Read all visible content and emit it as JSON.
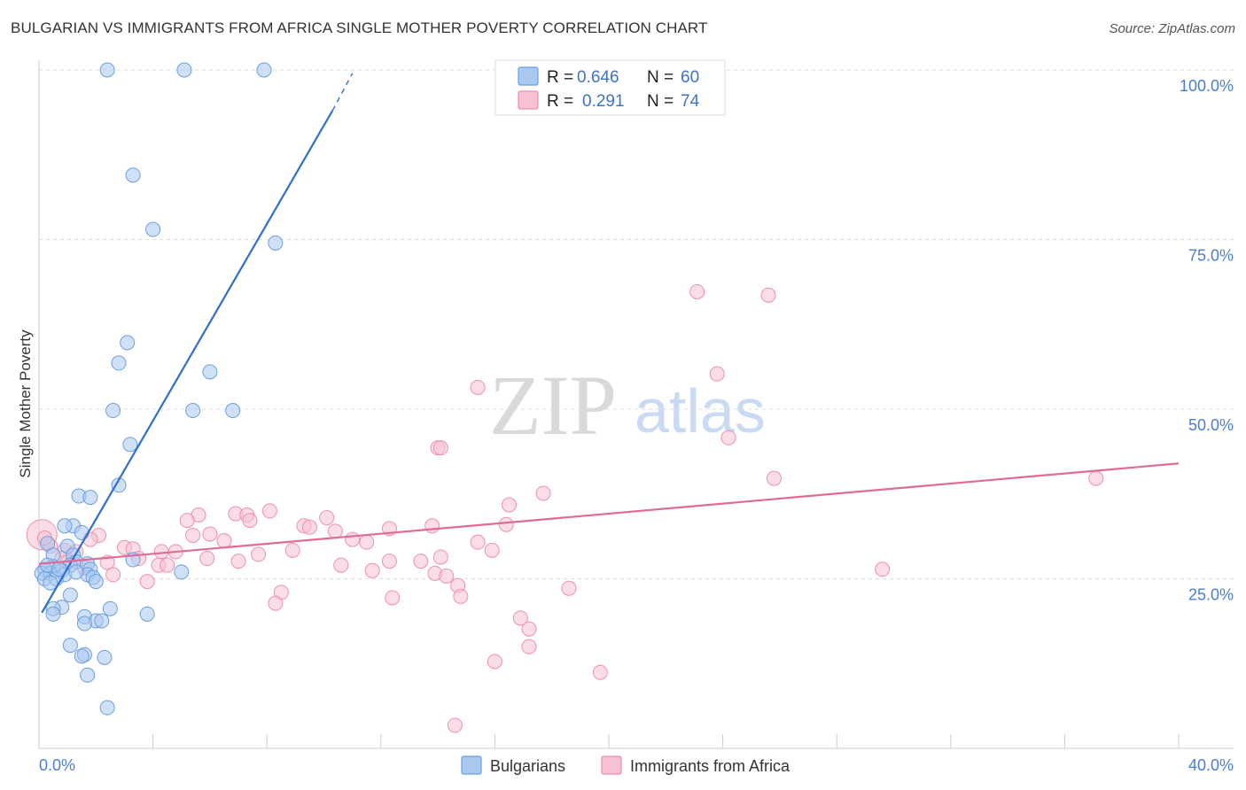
{
  "title": "BULGARIAN VS IMMIGRANTS FROM AFRICA SINGLE MOTHER POVERTY CORRELATION CHART",
  "source": "Source: ZipAtlas.com",
  "colors": {
    "blue_fill": "#a9c8f0",
    "blue_stroke": "#6a9fe0",
    "blue_line": "#2f6fd0",
    "pink_fill": "#f7c1d2",
    "pink_stroke": "#ee8fb0",
    "pink_line": "#e06a98",
    "tick_text": "#4a7fd0",
    "grid": "#dddddd"
  },
  "watermark": {
    "zip": "ZIP",
    "atlas": "atlas"
  },
  "legend": {
    "row1": {
      "r_label": "R =",
      "r_value": "0.646",
      "n_label": "N =",
      "n_value": "60"
    },
    "row2": {
      "r_label": "R =",
      "r_value": "0.291",
      "n_label": "N =",
      "n_value": "74"
    }
  },
  "bottom_legend": {
    "item1": "Bulgarians",
    "item2": "Immigrants from Africa"
  },
  "chart_data": {
    "type": "scatter",
    "title": "BULGARIAN VS IMMIGRANTS FROM AFRICA SINGLE MOTHER POVERTY CORRELATION CHART",
    "xlabel": "",
    "ylabel": "Single Mother Poverty",
    "xlim": [
      0,
      40
    ],
    "ylim": [
      0,
      100
    ],
    "x_tick_labels": {
      "min": "0.0%",
      "max": "40.0%"
    },
    "y_ticks": [
      {
        "value": 25,
        "label": "25.0%"
      },
      {
        "value": 50,
        "label": "50.0%"
      },
      {
        "value": 75,
        "label": "75.0%"
      },
      {
        "value": 100,
        "label": "100.0%"
      }
    ],
    "grid": true,
    "series": [
      {
        "name": "Bulgarians",
        "color": "#a9c8f0",
        "R": 0.646,
        "N": 60,
        "trend": {
          "x0": 0.1,
          "y0": 20.0,
          "x1": 10.3,
          "y1": 94.0,
          "dash_to_x": 11.0,
          "dash_to_y": 99.5
        },
        "points": [
          [
            2.4,
            100.0
          ],
          [
            5.1,
            100.0
          ],
          [
            7.9,
            100.0
          ],
          [
            3.3,
            84.5
          ],
          [
            4.0,
            76.5
          ],
          [
            8.3,
            74.5
          ],
          [
            3.1,
            59.8
          ],
          [
            2.8,
            56.8
          ],
          [
            6.0,
            55.5
          ],
          [
            2.6,
            49.8
          ],
          [
            5.4,
            49.8
          ],
          [
            6.8,
            49.8
          ],
          [
            3.2,
            44.8
          ],
          [
            2.8,
            38.8
          ],
          [
            1.4,
            37.2
          ],
          [
            1.8,
            37.0
          ],
          [
            1.2,
            32.8
          ],
          [
            0.9,
            32.8
          ],
          [
            1.5,
            31.8
          ],
          [
            0.3,
            30.2
          ],
          [
            1.0,
            29.8
          ],
          [
            0.5,
            28.5
          ],
          [
            1.2,
            28.5
          ],
          [
            3.3,
            27.8
          ],
          [
            1.3,
            27.5
          ],
          [
            1.7,
            27.2
          ],
          [
            1.1,
            27.0
          ],
          [
            0.5,
            26.8
          ],
          [
            0.2,
            26.4
          ],
          [
            0.8,
            26.2
          ],
          [
            1.8,
            26.4
          ],
          [
            5.0,
            26.0
          ],
          [
            0.1,
            25.8
          ],
          [
            0.4,
            25.8
          ],
          [
            0.9,
            25.6
          ],
          [
            1.7,
            25.6
          ],
          [
            1.9,
            25.2
          ],
          [
            0.2,
            25.0
          ],
          [
            0.6,
            25.0
          ],
          [
            2.0,
            24.6
          ],
          [
            0.4,
            24.4
          ],
          [
            1.1,
            22.6
          ],
          [
            0.8,
            20.8
          ],
          [
            0.5,
            20.6
          ],
          [
            2.5,
            20.6
          ],
          [
            0.5,
            19.8
          ],
          [
            3.8,
            19.8
          ],
          [
            1.6,
            19.4
          ],
          [
            2.0,
            18.8
          ],
          [
            2.2,
            18.8
          ],
          [
            1.6,
            18.4
          ],
          [
            1.1,
            15.2
          ],
          [
            1.6,
            13.8
          ],
          [
            1.5,
            13.6
          ],
          [
            2.3,
            13.4
          ],
          [
            1.7,
            10.8
          ],
          [
            2.4,
            6.0
          ],
          [
            0.3,
            27.0
          ],
          [
            0.7,
            26.4
          ],
          [
            1.3,
            26.0
          ]
        ]
      },
      {
        "name": "Immigrants from Africa",
        "color": "#f7c1d2",
        "R": 0.291,
        "N": 74,
        "trend": {
          "x0": 0.0,
          "y0": 27.2,
          "x1": 40.0,
          "y1": 42.0
        },
        "points": [
          [
            23.1,
            67.3
          ],
          [
            25.6,
            66.8
          ],
          [
            23.8,
            55.2
          ],
          [
            15.4,
            53.2
          ],
          [
            24.2,
            45.8
          ],
          [
            14.0,
            44.3
          ],
          [
            14.1,
            44.3
          ],
          [
            25.8,
            39.8
          ],
          [
            37.1,
            39.8
          ],
          [
            17.7,
            37.6
          ],
          [
            16.5,
            35.9
          ],
          [
            8.1,
            35.0
          ],
          [
            6.9,
            34.6
          ],
          [
            5.6,
            34.4
          ],
          [
            7.3,
            34.4
          ],
          [
            5.2,
            33.6
          ],
          [
            7.4,
            33.6
          ],
          [
            10.1,
            34.0
          ],
          [
            9.3,
            32.8
          ],
          [
            9.5,
            32.6
          ],
          [
            13.8,
            32.8
          ],
          [
            12.3,
            32.4
          ],
          [
            16.4,
            33.0
          ],
          [
            10.4,
            32.0
          ],
          [
            6.0,
            31.6
          ],
          [
            5.4,
            31.4
          ],
          [
            2.1,
            31.4
          ],
          [
            1.8,
            30.8
          ],
          [
            11.0,
            30.8
          ],
          [
            6.5,
            30.6
          ],
          [
            11.5,
            30.4
          ],
          [
            15.4,
            30.4
          ],
          [
            3.0,
            29.6
          ],
          [
            3.3,
            29.4
          ],
          [
            4.3,
            29.0
          ],
          [
            4.8,
            29.0
          ],
          [
            8.9,
            29.2
          ],
          [
            15.9,
            29.2
          ],
          [
            0.9,
            29.2
          ],
          [
            1.3,
            29.0
          ],
          [
            0.4,
            29.8
          ],
          [
            7.7,
            28.6
          ],
          [
            14.1,
            28.2
          ],
          [
            3.5,
            28.0
          ],
          [
            5.9,
            28.0
          ],
          [
            0.8,
            28.0
          ],
          [
            13.4,
            27.6
          ],
          [
            2.4,
            27.4
          ],
          [
            7.0,
            27.6
          ],
          [
            12.3,
            27.6
          ],
          [
            10.6,
            27.0
          ],
          [
            4.2,
            27.0
          ],
          [
            4.5,
            27.0
          ],
          [
            11.7,
            26.2
          ],
          [
            29.6,
            26.4
          ],
          [
            2.6,
            25.6
          ],
          [
            13.9,
            25.8
          ],
          [
            14.3,
            25.4
          ],
          [
            3.8,
            24.6
          ],
          [
            14.7,
            24.0
          ],
          [
            18.6,
            23.6
          ],
          [
            8.5,
            23.0
          ],
          [
            12.4,
            22.2
          ],
          [
            14.8,
            22.4
          ],
          [
            8.3,
            21.4
          ],
          [
            16.9,
            19.2
          ],
          [
            17.2,
            17.6
          ],
          [
            17.2,
            15.0
          ],
          [
            16.0,
            12.8
          ],
          [
            19.7,
            11.2
          ],
          [
            14.6,
            3.4
          ],
          [
            1.0,
            27.5
          ],
          [
            1.6,
            26.6
          ],
          [
            0.2,
            31.0
          ]
        ]
      }
    ]
  }
}
